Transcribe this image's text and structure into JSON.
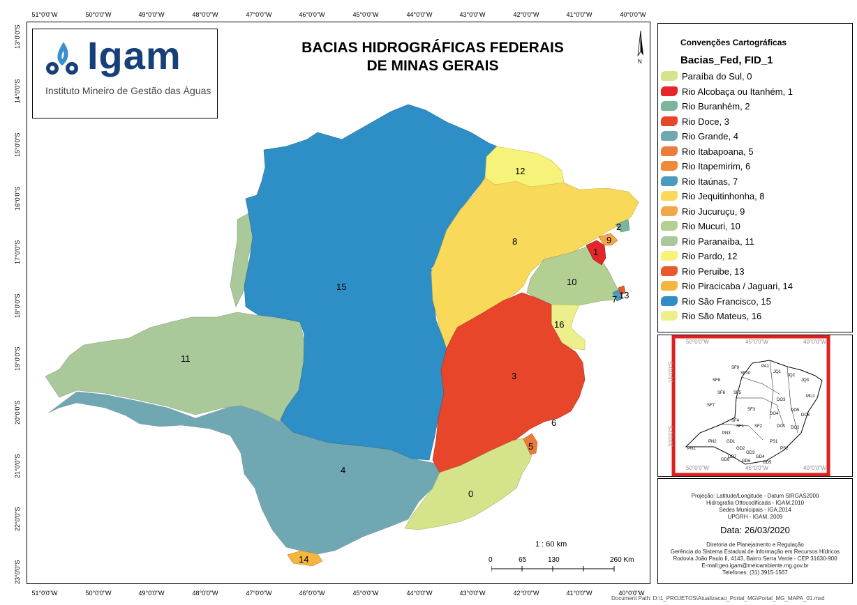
{
  "title_line1": "BACIAS HIDROGRÁFICAS FEDERAIS",
  "title_line2": "DE MINAS GERAIS",
  "logo": {
    "name": "Igam",
    "subtitle": "Instituto Mineiro de Gestão das Águas"
  },
  "graticule": {
    "top_ticks": [
      "51°0'0\"W",
      "50°0'0\"W",
      "49°0'0\"W",
      "48°0'0\"W",
      "47°0'0\"W",
      "46°0'0\"W",
      "45°0'0\"W",
      "44°0'0\"W",
      "43°0'0\"W",
      "42°0'0\"W",
      "41°0'0\"W",
      "40°0'0\"W"
    ],
    "bottom_ticks": [
      "51°0'0\"W",
      "50°0'0\"W",
      "49°0'0\"W",
      "48°0'0\"W",
      "47°0'0\"W",
      "46°0'0\"W",
      "45°0'0\"W",
      "44°0'0\"W",
      "43°0'0\"W",
      "42°0'0\"W",
      "41°0'0\"W",
      "40°0'0\"W"
    ],
    "left_ticks": [
      "13°0'0\"S",
      "14°0'0\"S",
      "15°0'0\"S",
      "16°0'0\"S",
      "17°0'0\"S",
      "18°0'0\"S",
      "19°0'0\"S",
      "20°0'0\"S",
      "21°0'0\"S",
      "22°0'0\"S",
      "23°0'0\"S"
    ]
  },
  "north_label": "N",
  "basin_labels": [
    "0",
    "1",
    "2",
    "3",
    "4",
    "5",
    "6",
    "7",
    "8",
    "9",
    "10",
    "11",
    "12",
    "13",
    "14",
    "15",
    "16"
  ],
  "scale": {
    "ratio": "1 : 60 km",
    "ticks": [
      "0",
      "65",
      "130",
      "260 Km"
    ]
  },
  "legend": {
    "heading": "Convenções Cartográficas",
    "layer": "Bacias_Fed, FID_1",
    "items": [
      {
        "label": "Paraíba do Sul, 0",
        "color": "#d5e48a"
      },
      {
        "label": "Rio Alcobaça ou Itanhém, 1",
        "color": "#e3262a"
      },
      {
        "label": "Rio Buranhém, 2",
        "color": "#7bb59c"
      },
      {
        "label": "Rio Doce, 3",
        "color": "#e8462a"
      },
      {
        "label": "Rio Grande, 4",
        "color": "#6fa8b3"
      },
      {
        "label": "Rio Itabapoana, 5",
        "color": "#ec7b3c"
      },
      {
        "label": "Rio Itapemirim, 6",
        "color": "#ee8a3a"
      },
      {
        "label": "Rio Itaúnas, 7",
        "color": "#4b9bc0"
      },
      {
        "label": "Rio Jequitinhonha, 8",
        "color": "#f9d95a"
      },
      {
        "label": "Rio Jucuruçu, 9",
        "color": "#f4a64a"
      },
      {
        "label": "Rio Mucuri, 10",
        "color": "#b3cf92"
      },
      {
        "label": "Rio Paranaíba, 11",
        "color": "#a9c99a"
      },
      {
        "label": "Rio Pardo, 12",
        "color": "#f7f27a"
      },
      {
        "label": "Rio Peruibe, 13",
        "color": "#e85a2c"
      },
      {
        "label": "Rio Piracicaba / Jaguari, 14",
        "color": "#f5b640"
      },
      {
        "label": "Rio São Francisco, 15",
        "color": "#2e8fc6"
      },
      {
        "label": "Rio São Mateus, 16",
        "color": "#ecef8a"
      }
    ]
  },
  "inset": {
    "lon_labels": [
      "50°0'0\"W",
      "45°0'0\"W",
      "40°0'0\"W"
    ],
    "lat_labels": [
      "15°0'0\"S",
      "20°0'0\"S"
    ],
    "codes": [
      "SF9",
      "SF8",
      "SF6",
      "SF10",
      "PA1",
      "JQ1",
      "JQ2",
      "JQ3",
      "SF7",
      "SF5",
      "MU1",
      "PN1",
      "PN2",
      "PN3",
      "SF4",
      "SF3",
      "DO4",
      "DO3",
      "DO5",
      "DO6",
      "SF1",
      "SF2",
      "GD1",
      "GD2",
      "GD3",
      "GD4",
      "GD5",
      "GD6",
      "GD7",
      "GD8",
      "DO1",
      "DO2",
      "PS1",
      "PS2"
    ],
    "frame_color": "#e02020"
  },
  "info": {
    "lines": [
      "Projeção: Latitude/Longitude - Datum SIRGAS2000",
      "Hidrografia Ottocodificada - IGAM,2010",
      "Sedes Municipais - IGA,2014",
      "UPGRH - IGAM, 2009"
    ],
    "date": "Data: 26/03/2020",
    "credits": [
      "Diretoria de Planejamento e Regulação",
      "Gerência do Sistema Estadual de Informação em Recursos Hídricos",
      "Rodovia João Paulo II, 4143, Bairro Serra Verde - CEP 31630-900",
      "E-mail:geo.igam@meioambiente.mg.gov.br",
      "Telefones: (31) 3915-1567"
    ]
  },
  "document_path": "Document Path: D:\\1_PROJETOS\\Atualizacao_Portal_MG\\Portal_MG_MAPA_01.mxd"
}
